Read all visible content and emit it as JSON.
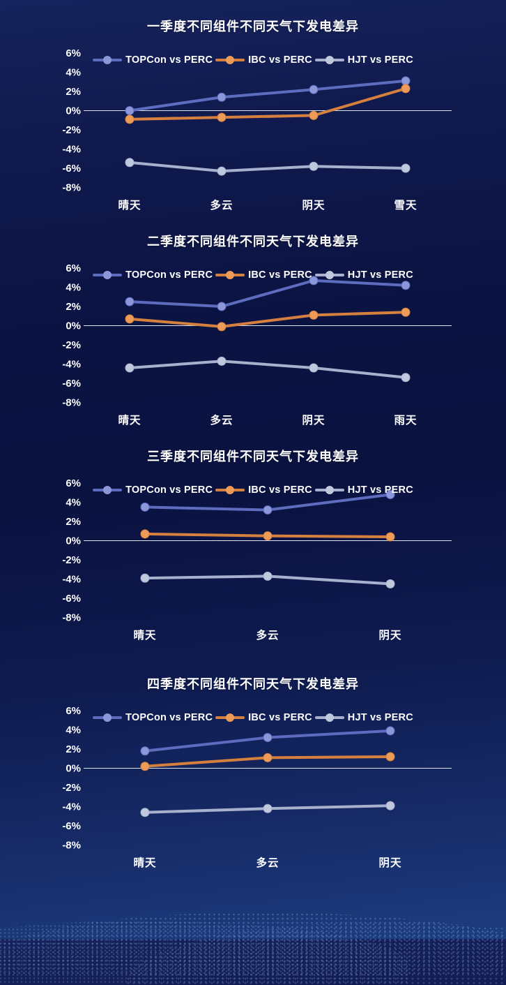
{
  "theme": {
    "background_top": "#16235c",
    "background_mid": "#0a1240",
    "background_bottom": "#1d3d80",
    "text_color": "#ffffff",
    "zero_line_color": "#dde4f2"
  },
  "series_colors": [
    {
      "name": "TOPCon vs PERC",
      "line": "#5e6cc0",
      "marker": "#8b97d9"
    },
    {
      "name": "IBC vs PERC",
      "line": "#d5803f",
      "marker": "#ec9c58"
    },
    {
      "name": "HJT vs PERC",
      "line": "#a7b1cd",
      "marker": "#c0c8dd"
    }
  ],
  "chart_data": [
    {
      "type": "line",
      "title": "一季度不同组件不同天气下发电差异",
      "categories": [
        "晴天",
        "多云",
        "阴天",
        "雪天"
      ],
      "series": [
        {
          "name": "TOPCon vs PERC",
          "values": [
            0.0,
            1.4,
            2.2,
            3.1
          ]
        },
        {
          "name": "IBC vs PERC",
          "values": [
            -0.9,
            -0.7,
            -0.5,
            2.3
          ]
        },
        {
          "name": "HJT vs PERC",
          "values": [
            -5.4,
            -6.3,
            -5.8,
            -6.0
          ]
        }
      ],
      "ylabel": "",
      "xlabel": "",
      "ylim": [
        -8,
        6
      ],
      "yticks": [
        6,
        4,
        2,
        0,
        -2,
        -4,
        -6,
        -8
      ],
      "ytick_suffix": "%",
      "grid": false,
      "zero_axis_line": true,
      "legend_position": "top"
    },
    {
      "type": "line",
      "title": "二季度不同组件不同天气下发电差异",
      "categories": [
        "晴天",
        "多云",
        "阴天",
        "雨天"
      ],
      "series": [
        {
          "name": "TOPCon vs PERC",
          "values": [
            2.5,
            2.0,
            4.7,
            4.2
          ]
        },
        {
          "name": "IBC vs PERC",
          "values": [
            0.7,
            -0.1,
            1.1,
            1.4
          ]
        },
        {
          "name": "HJT vs PERC",
          "values": [
            -4.4,
            -3.7,
            -4.4,
            -5.4
          ]
        }
      ],
      "ylabel": "",
      "xlabel": "",
      "ylim": [
        -8,
        6
      ],
      "yticks": [
        6,
        4,
        2,
        0,
        -2,
        -4,
        -6,
        -8
      ],
      "ytick_suffix": "%",
      "grid": false,
      "zero_axis_line": true,
      "legend_position": "top"
    },
    {
      "type": "line",
      "title": "三季度不同组件不同天气下发电差异",
      "categories": [
        "晴天",
        "多云",
        "阴天"
      ],
      "series": [
        {
          "name": "TOPCon vs PERC",
          "values": [
            3.5,
            3.2,
            4.8
          ]
        },
        {
          "name": "IBC vs PERC",
          "values": [
            0.7,
            0.5,
            0.4
          ]
        },
        {
          "name": "HJT vs PERC",
          "values": [
            -3.9,
            -3.7,
            -4.5
          ]
        }
      ],
      "ylabel": "",
      "xlabel": "",
      "ylim": [
        -8,
        6
      ],
      "yticks": [
        6,
        4,
        2,
        0,
        -2,
        -4,
        -6,
        -8
      ],
      "ytick_suffix": "%",
      "grid": false,
      "zero_axis_line": true,
      "legend_position": "top"
    },
    {
      "type": "line",
      "title": "四季度不同组件不同天气下发电差异",
      "categories": [
        "晴天",
        "多云",
        "阴天"
      ],
      "series": [
        {
          "name": "TOPCon vs PERC",
          "values": [
            1.8,
            3.2,
            3.9
          ]
        },
        {
          "name": "IBC vs PERC",
          "values": [
            0.2,
            1.1,
            1.2
          ]
        },
        {
          "name": "HJT vs PERC",
          "values": [
            -4.6,
            -4.2,
            -3.9
          ]
        }
      ],
      "ylabel": "",
      "xlabel": "",
      "ylim": [
        -8,
        6
      ],
      "yticks": [
        6,
        4,
        2,
        0,
        -2,
        -4,
        -6,
        -8
      ],
      "ytick_suffix": "%",
      "grid": false,
      "zero_axis_line": true,
      "legend_position": "top"
    }
  ]
}
